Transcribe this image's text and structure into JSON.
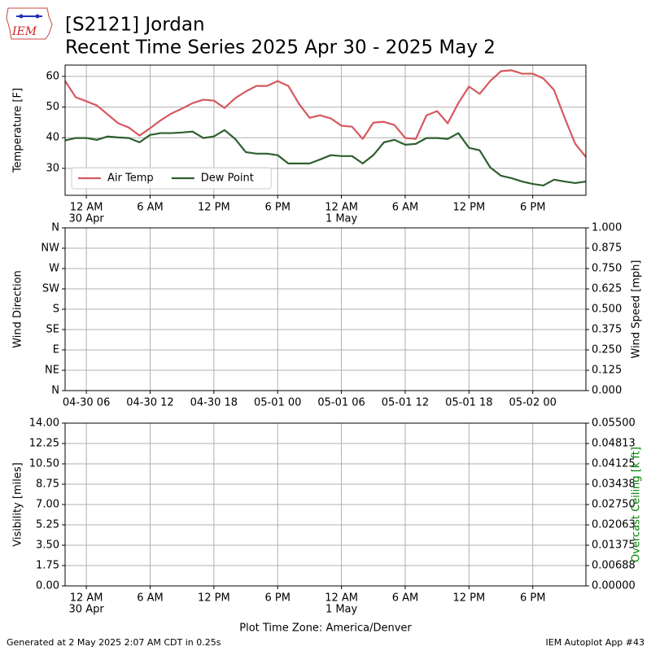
{
  "header": {
    "logo": "IEM",
    "title": "[S2121] Jordan",
    "subtitle": "Recent Time Series 2025 Apr 30 - 2025 May 2"
  },
  "footer": {
    "left": "Generated at 2 May 2025 2:07 AM CDT in 0.25s",
    "right": "IEM Autoplot App #43"
  },
  "chart_data": [
    {
      "type": "line",
      "ylabel": "Temperature [F]",
      "xlim": [
        "2025-04-29T22:00",
        "2025-05-01T23:00"
      ],
      "xticks": [
        {
          "value": "2025-04-30T00:00",
          "label": [
            "12 AM",
            "30 Apr"
          ]
        },
        {
          "value": "2025-04-30T06:00",
          "label": "6 AM"
        },
        {
          "value": "2025-04-30T12:00",
          "label": "12 PM"
        },
        {
          "value": "2025-04-30T18:00",
          "label": "6 PM"
        },
        {
          "value": "2025-05-01T00:00",
          "label": [
            "12 AM",
            "1 May"
          ]
        },
        {
          "value": "2025-05-01T06:00",
          "label": "6 AM"
        },
        {
          "value": "2025-05-01T12:00",
          "label": "12 PM"
        },
        {
          "value": "2025-05-01T18:00",
          "label": "6 PM"
        }
      ],
      "ylim": [
        21.2,
        63.7
      ],
      "yticks": [
        30,
        40,
        50,
        60
      ],
      "grid": true,
      "legend": "lower left",
      "x": [
        "2025-04-29T22:00",
        "2025-04-29T23:00",
        "2025-04-30T00:00",
        "2025-04-30T01:00",
        "2025-04-30T02:00",
        "2025-04-30T03:00",
        "2025-04-30T04:00",
        "2025-04-30T05:00",
        "2025-04-30T06:00",
        "2025-04-30T07:00",
        "2025-04-30T08:00",
        "2025-04-30T09:00",
        "2025-04-30T10:00",
        "2025-04-30T11:00",
        "2025-04-30T12:00",
        "2025-04-30T13:00",
        "2025-04-30T14:00",
        "2025-04-30T15:00",
        "2025-04-30T16:00",
        "2025-04-30T17:00",
        "2025-04-30T18:00",
        "2025-04-30T19:00",
        "2025-04-30T20:00",
        "2025-04-30T21:00",
        "2025-04-30T22:00",
        "2025-04-30T23:00",
        "2025-05-01T00:00",
        "2025-05-01T01:00",
        "2025-05-01T02:00",
        "2025-05-01T03:00",
        "2025-05-01T04:00",
        "2025-05-01T05:00",
        "2025-05-01T06:00",
        "2025-05-01T07:00",
        "2025-05-01T08:00",
        "2025-05-01T09:00",
        "2025-05-01T10:00",
        "2025-05-01T11:00",
        "2025-05-01T12:00",
        "2025-05-01T13:00",
        "2025-05-01T14:00",
        "2025-05-01T15:00",
        "2025-05-01T16:00",
        "2025-05-01T17:00",
        "2025-05-01T18:00",
        "2025-05-01T19:00",
        "2025-05-01T20:00",
        "2025-05-01T21:00",
        "2025-05-01T22:00",
        "2025-05-01T23:00"
      ],
      "series": [
        {
          "name": "Air Temp",
          "color": "#d6595f",
          "values": [
            58.5,
            53.2,
            51.9,
            50.5,
            47.6,
            44.7,
            43.3,
            40.7,
            43.1,
            45.7,
            47.9,
            49.5,
            51.3,
            52.4,
            52.1,
            49.7,
            52.9,
            55.1,
            56.9,
            56.9,
            58.5,
            56.9,
            51.1,
            46.5,
            47.3,
            46.3,
            43.9,
            43.6,
            39.6,
            44.9,
            45.2,
            44.1,
            39.9,
            39.6,
            47.3,
            48.7,
            44.7,
            51.3,
            56.7,
            54.3,
            58.5,
            61.7,
            62.0,
            60.9,
            60.9,
            59.3,
            55.6,
            46.5,
            38.0,
            33.7
          ]
        },
        {
          "name": "Dew Point",
          "color": "#2e5f2e",
          "values": [
            39.1,
            39.9,
            39.9,
            39.3,
            40.4,
            40.1,
            39.9,
            38.5,
            40.9,
            41.5,
            41.5,
            41.7,
            42.0,
            39.9,
            40.4,
            42.5,
            39.6,
            35.3,
            34.8,
            34.8,
            34.3,
            31.6,
            31.6,
            31.6,
            32.9,
            34.3,
            34.0,
            34.0,
            31.6,
            34.3,
            38.5,
            39.3,
            37.7,
            38.0,
            39.9,
            39.9,
            39.6,
            41.5,
            36.7,
            35.9,
            30.3,
            27.6,
            26.8,
            25.7,
            24.9,
            24.4,
            26.3,
            25.7,
            25.2,
            25.7
          ]
        }
      ]
    },
    {
      "type": "line",
      "ylabel": "Wind Direction",
      "y2label": "Wind Speed [mph]",
      "xlim": [
        "2025-04-30T04:00",
        "2025-05-02T05:00"
      ],
      "xticks": [
        {
          "value": "2025-04-30T06:00",
          "label": "04-30 06"
        },
        {
          "value": "2025-04-30T12:00",
          "label": "04-30 12"
        },
        {
          "value": "2025-04-30T18:00",
          "label": "04-30 18"
        },
        {
          "value": "2025-05-01T00:00",
          "label": "05-01 00"
        },
        {
          "value": "2025-05-01T06:00",
          "label": "05-01 06"
        },
        {
          "value": "2025-05-01T12:00",
          "label": "05-01 12"
        },
        {
          "value": "2025-05-01T18:00",
          "label": "05-01 18"
        },
        {
          "value": "2025-05-02T00:00",
          "label": "05-02 00"
        }
      ],
      "ylim": [
        0,
        360
      ],
      "yticks": [
        {
          "value": 0,
          "label": "N"
        },
        {
          "value": 45,
          "label": "NE"
        },
        {
          "value": 90,
          "label": "E"
        },
        {
          "value": 135,
          "label": "SE"
        },
        {
          "value": 180,
          "label": "S"
        },
        {
          "value": 225,
          "label": "SW"
        },
        {
          "value": 270,
          "label": "W"
        },
        {
          "value": 315,
          "label": "NW"
        },
        {
          "value": 360,
          "label": "N"
        }
      ],
      "y2lim": [
        0,
        1
      ],
      "y2ticks": [
        {
          "value": 0,
          "label": "0.000"
        },
        0.125,
        {
          "value": 0.25,
          "label": "0.250"
        },
        0.375,
        {
          "value": 0.5,
          "label": "0.500"
        },
        0.625,
        {
          "value": 0.75,
          "label": "0.750"
        },
        0.875,
        {
          "value": 1,
          "label": "1.000"
        }
      ],
      "grid": true,
      "series": []
    },
    {
      "type": "line",
      "ylabel": "Visibility [miles]",
      "y2label": "Overcast Ceiling [k ft]",
      "y2label_color": "green",
      "xlabel": "Plot Time Zone: America/Denver",
      "xlim": [
        "2025-04-29T22:00",
        "2025-05-01T23:00"
      ],
      "xticks": [
        {
          "value": "2025-04-30T00:00",
          "label": [
            "12 AM",
            "30 Apr"
          ]
        },
        {
          "value": "2025-04-30T06:00",
          "label": "6 AM"
        },
        {
          "value": "2025-04-30T12:00",
          "label": "12 PM"
        },
        {
          "value": "2025-04-30T18:00",
          "label": "6 PM"
        },
        {
          "value": "2025-05-01T00:00",
          "label": [
            "12 AM",
            "1 May"
          ]
        },
        {
          "value": "2025-05-01T06:00",
          "label": "6 AM"
        },
        {
          "value": "2025-05-01T12:00",
          "label": "12 PM"
        },
        {
          "value": "2025-05-01T18:00",
          "label": "6 PM"
        }
      ],
      "ylim": [
        0,
        14
      ],
      "yticks": [
        {
          "value": 0,
          "label": "0.00"
        },
        1.75,
        {
          "value": 3.5,
          "label": "3.50"
        },
        5.25,
        {
          "value": 7,
          "label": "7.00"
        },
        8.75,
        {
          "value": 10.5,
          "label": "10.50"
        },
        12.25,
        {
          "value": 14,
          "label": "14.00"
        }
      ],
      "y2lim": [
        0,
        0.055
      ],
      "y2ticks": [
        {
          "value": 0,
          "label": "0.00000"
        },
        {
          "value": 0.006875,
          "label": "0.00688"
        },
        {
          "value": 0.01375,
          "label": "0.01375"
        },
        {
          "value": 0.020625,
          "label": "0.02063"
        },
        {
          "value": 0.0275,
          "label": "0.02750"
        },
        {
          "value": 0.034375,
          "label": "0.03438"
        },
        {
          "value": 0.04125,
          "label": "0.04125"
        },
        {
          "value": 0.048125,
          "label": "0.04813"
        },
        {
          "value": 0.055,
          "label": "0.05500"
        }
      ],
      "grid": true,
      "series": []
    }
  ]
}
